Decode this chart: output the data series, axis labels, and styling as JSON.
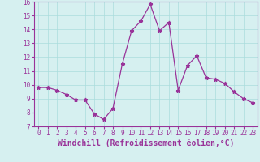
{
  "x": [
    0,
    1,
    2,
    3,
    4,
    5,
    6,
    7,
    8,
    9,
    10,
    11,
    12,
    13,
    14,
    15,
    16,
    17,
    18,
    19,
    20,
    21,
    22,
    23
  ],
  "y": [
    9.8,
    9.8,
    9.6,
    9.3,
    8.9,
    8.9,
    7.9,
    7.5,
    8.3,
    11.5,
    13.9,
    14.6,
    15.8,
    13.9,
    14.5,
    9.6,
    11.4,
    12.1,
    10.5,
    10.4,
    10.1,
    9.5,
    9.0,
    8.7
  ],
  "xlim": [
    -0.5,
    23.5
  ],
  "ylim": [
    7,
    16
  ],
  "yticks": [
    7,
    8,
    9,
    10,
    11,
    12,
    13,
    14,
    15,
    16
  ],
  "xticks": [
    0,
    1,
    2,
    3,
    4,
    5,
    6,
    7,
    8,
    9,
    10,
    11,
    12,
    13,
    14,
    15,
    16,
    17,
    18,
    19,
    20,
    21,
    22,
    23
  ],
  "xlabel": "Windchill (Refroidissement éolien,°C)",
  "line_color": "#993399",
  "marker": "*",
  "bg_color": "#d6f0f0",
  "grid_color": "#aadddd",
  "tick_color": "#993399",
  "label_color": "#993399",
  "tick_fontsize": 5.5,
  "xlabel_fontsize": 7.0
}
